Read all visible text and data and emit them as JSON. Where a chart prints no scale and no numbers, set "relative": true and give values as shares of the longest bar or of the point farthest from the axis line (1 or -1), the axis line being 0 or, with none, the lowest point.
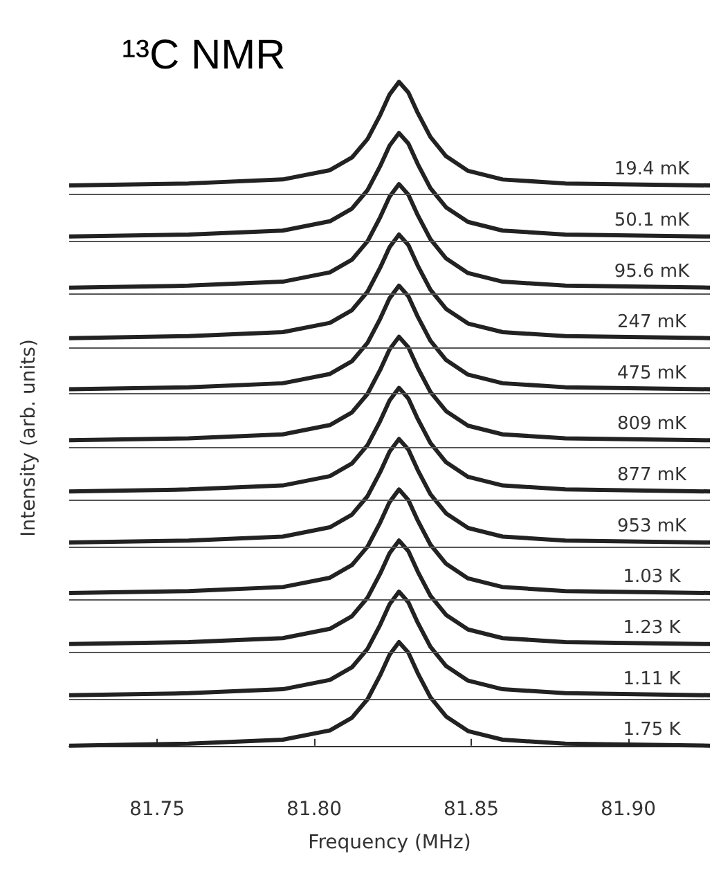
{
  "chart_data": {
    "type": "line",
    "title": "¹³C NMR",
    "xlabel": "Frequency (MHz)",
    "ylabel": "Intensity (arb. units)",
    "relative": true,
    "legend": false,
    "grid": false,
    "marker": "none",
    "line_style": "solid",
    "x": [
      81.722,
      81.76,
      81.79,
      81.805,
      81.812,
      81.817,
      81.821,
      81.824,
      81.827,
      81.83,
      81.833,
      81.837,
      81.842,
      81.849,
      81.86,
      81.88,
      81.926
    ],
    "xlim": [
      81.722,
      81.926
    ],
    "xticks": [
      {
        "value": 81.75,
        "label": "81.75"
      },
      {
        "value": 81.8,
        "label": "81.80"
      },
      {
        "value": 81.85,
        "label": "81.85"
      },
      {
        "value": 81.9,
        "label": "81.90"
      }
    ],
    "series": [
      {
        "name": "19.4 mK",
        "color": "#222222",
        "values": [
          0.844,
          0.847,
          0.853,
          0.867,
          0.886,
          0.914,
          0.95,
          0.981,
          1.0,
          0.984,
          0.953,
          0.917,
          0.888,
          0.866,
          0.853,
          0.847,
          0.844
        ]
      },
      {
        "name": "50.1 mK",
        "color": "#222222",
        "values": [
          0.767,
          0.77,
          0.776,
          0.79,
          0.809,
          0.837,
          0.873,
          0.904,
          0.923,
          0.907,
          0.876,
          0.84,
          0.811,
          0.789,
          0.776,
          0.77,
          0.767
        ]
      },
      {
        "name": "95.6 mK",
        "color": "#222222",
        "values": [
          0.69,
          0.693,
          0.699,
          0.713,
          0.732,
          0.76,
          0.796,
          0.827,
          0.846,
          0.83,
          0.799,
          0.763,
          0.734,
          0.712,
          0.699,
          0.693,
          0.69
        ]
      },
      {
        "name": "247 mK",
        "color": "#222222",
        "values": [
          0.614,
          0.617,
          0.623,
          0.637,
          0.656,
          0.684,
          0.72,
          0.751,
          0.77,
          0.754,
          0.723,
          0.687,
          0.658,
          0.636,
          0.623,
          0.617,
          0.614
        ]
      },
      {
        "name": "475 mK",
        "color": "#222222",
        "values": [
          0.537,
          0.54,
          0.546,
          0.56,
          0.579,
          0.607,
          0.643,
          0.674,
          0.693,
          0.677,
          0.646,
          0.61,
          0.581,
          0.559,
          0.546,
          0.54,
          0.537
        ]
      },
      {
        "name": "809 mK",
        "color": "#222222",
        "values": [
          0.46,
          0.463,
          0.469,
          0.483,
          0.502,
          0.53,
          0.566,
          0.597,
          0.616,
          0.6,
          0.569,
          0.533,
          0.504,
          0.482,
          0.469,
          0.463,
          0.46
        ]
      },
      {
        "name": "877 mK",
        "color": "#222222",
        "values": [
          0.383,
          0.386,
          0.392,
          0.406,
          0.425,
          0.453,
          0.489,
          0.52,
          0.539,
          0.523,
          0.492,
          0.456,
          0.427,
          0.405,
          0.392,
          0.386,
          0.383
        ]
      },
      {
        "name": "953 mK",
        "color": "#222222",
        "values": [
          0.306,
          0.309,
          0.315,
          0.329,
          0.348,
          0.376,
          0.412,
          0.443,
          0.462,
          0.446,
          0.415,
          0.379,
          0.35,
          0.328,
          0.315,
          0.309,
          0.306
        ]
      },
      {
        "name": "1.03 K",
        "color": "#222222",
        "values": [
          0.23,
          0.233,
          0.239,
          0.253,
          0.272,
          0.3,
          0.336,
          0.367,
          0.386,
          0.37,
          0.339,
          0.303,
          0.274,
          0.252,
          0.239,
          0.233,
          0.23
        ]
      },
      {
        "name": "1.23 K",
        "color": "#222222",
        "values": [
          0.153,
          0.156,
          0.162,
          0.176,
          0.195,
          0.223,
          0.259,
          0.29,
          0.309,
          0.293,
          0.262,
          0.226,
          0.197,
          0.175,
          0.162,
          0.156,
          0.153
        ]
      },
      {
        "name": "1.11 K",
        "color": "#222222",
        "values": [
          0.076,
          0.079,
          0.085,
          0.099,
          0.118,
          0.146,
          0.182,
          0.213,
          0.232,
          0.216,
          0.185,
          0.149,
          0.12,
          0.098,
          0.085,
          0.079,
          0.076
        ]
      },
      {
        "name": "1.75 K",
        "color": "#222222",
        "values": [
          0,
          0.003,
          0.009,
          0.023,
          0.042,
          0.07,
          0.106,
          0.137,
          0.156,
          0.14,
          0.109,
          0.073,
          0.044,
          0.022,
          0.009,
          0.003,
          0
        ]
      }
    ],
    "ref_lines": [
      {
        "axis": "y",
        "value": 0.834,
        "color": "#555555"
      },
      {
        "axis": "y",
        "value": 0.757,
        "color": "#555555"
      },
      {
        "axis": "y",
        "value": 0.68,
        "color": "#555555"
      },
      {
        "axis": "y",
        "value": 0.601,
        "color": "#555555"
      },
      {
        "axis": "y",
        "value": 0.527,
        "color": "#555555"
      },
      {
        "axis": "y",
        "value": 0.45,
        "color": "#555555"
      },
      {
        "axis": "y",
        "value": 0.373,
        "color": "#555555"
      },
      {
        "axis": "y",
        "value": 0.296,
        "color": "#555555"
      },
      {
        "axis": "y",
        "value": 0.22,
        "color": "#555555"
      },
      {
        "axis": "y",
        "value": 0.143,
        "color": "#555555"
      },
      {
        "axis": "y",
        "value": 0.066,
        "color": "#555555"
      }
    ]
  }
}
